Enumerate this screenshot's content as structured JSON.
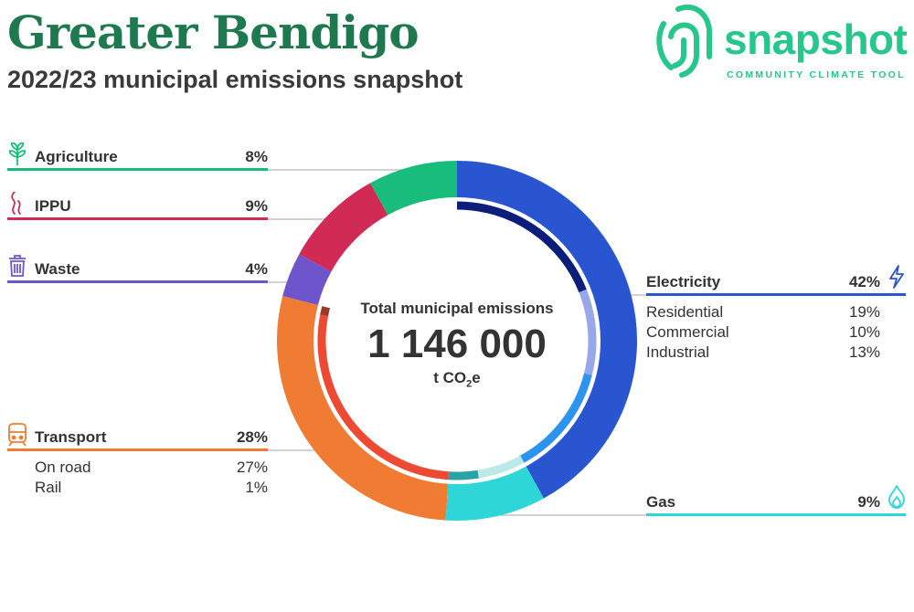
{
  "header": {
    "title": "Greater Bendigo",
    "subtitle": "2022/23 municipal emissions snapshot"
  },
  "logo": {
    "word": "snapshot",
    "tagline": "COMMUNITY CLIMATE TOOL",
    "color": "#27c68a",
    "icon": "fingerprint-icon"
  },
  "center": {
    "label": "Total municipal emissions",
    "value": "1 146 000",
    "unit_prefix": "t CO",
    "unit_sub": "2",
    "unit_suffix": "e"
  },
  "chart_data": {
    "type": "pie",
    "total": 1146000,
    "unit": "t CO2e",
    "series": [
      {
        "name": "Electricity",
        "value": 42,
        "label": "42%",
        "color": "#2a55d0",
        "icon": "lightning-icon",
        "breakdown": [
          {
            "name": "Residential",
            "value": 19,
            "label": "19%",
            "color": "#0b1f7a"
          },
          {
            "name": "Commercial",
            "value": 10,
            "label": "10%",
            "color": "#97a7ea"
          },
          {
            "name": "Industrial",
            "value": 13,
            "label": "13%",
            "color": "#2c93ee"
          }
        ]
      },
      {
        "name": "Gas",
        "value": 9,
        "label": "9%",
        "color": "#2fd6d8",
        "icon": "flame-icon",
        "breakdown": [
          {
            "value": 5.5,
            "color": "#bde8e8"
          },
          {
            "value": 3.5,
            "color": "#2aa3a8"
          }
        ]
      },
      {
        "name": "Transport",
        "value": 28,
        "label": "28%",
        "color": "#f07b33",
        "icon": "train-icon",
        "breakdown": [
          {
            "name": "On road",
            "value": 27,
            "label": "27%",
            "color": "#ec4a32"
          },
          {
            "name": "Rail",
            "value": 1,
            "label": "1%",
            "color": "#9a3a2c"
          }
        ]
      },
      {
        "name": "Waste",
        "value": 4,
        "label": "4%",
        "color": "#6e55cc",
        "icon": "bin-icon"
      },
      {
        "name": "IPPU",
        "value": 9,
        "label": "9%",
        "color": "#d12a55",
        "icon": "smoke-icon"
      },
      {
        "name": "Agriculture",
        "value": 8,
        "label": "8%",
        "color": "#18bd7c",
        "icon": "sprout-icon"
      }
    ]
  }
}
